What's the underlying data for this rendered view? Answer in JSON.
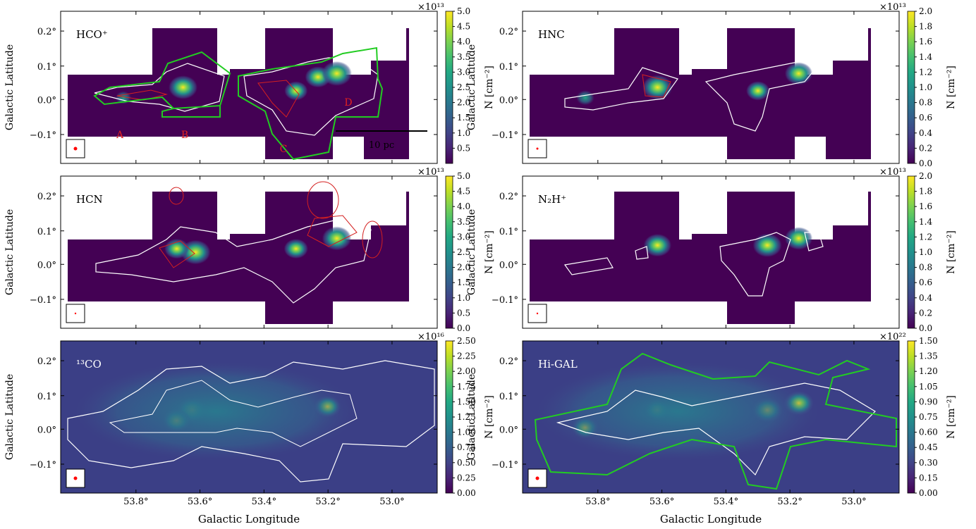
{
  "figure": {
    "ylabel": "Galactic Latitude",
    "xlabel": "Galactic Longitude",
    "cbar_label": "N [cm$^{-2}$]",
    "x_ticks": [
      "53.8°",
      "53.6°",
      "53.4°",
      "53.2°",
      "53.0°"
    ],
    "y_ticks": [
      "0.2°",
      "0.1°",
      "0.0°",
      "−0.1°"
    ]
  },
  "chart_data": [
    {
      "type": "heatmap",
      "species": "HCO⁺",
      "label": "HCO$^+$",
      "multiplier": "×10$^{13}$",
      "colorbar_ticks": [
        "0.5",
        "1.0",
        "1.5",
        "2.0",
        "2.5",
        "3.0",
        "3.5",
        "4.0",
        "4.5",
        "5.0"
      ],
      "colorbar_range": [
        0.0,
        5.0
      ],
      "x_range_deg": [
        54.0,
        52.8
      ],
      "y_range_deg": [
        -0.19,
        0.25
      ],
      "region_labels": [
        "A",
        "B",
        "C",
        "D"
      ],
      "scalebar_label": "10 pc",
      "peaks": [
        {
          "l": 53.61,
          "b": 0.03,
          "v": 4.5
        },
        {
          "l": 53.18,
          "b": 0.06,
          "v": 3.8
        },
        {
          "l": 53.12,
          "b": 0.07,
          "v": 4.8
        },
        {
          "l": 53.25,
          "b": 0.02,
          "v": 3.2
        },
        {
          "l": 53.8,
          "b": 0.0,
          "v": 1.5
        }
      ]
    },
    {
      "type": "heatmap",
      "species": "HNC",
      "label": "HNC",
      "multiplier": "×10$^{13}$",
      "colorbar_ticks": [
        "0.0",
        "0.2",
        "0.4",
        "0.6",
        "0.8",
        "1.0",
        "1.2",
        "1.4",
        "1.6",
        "1.8",
        "2.0"
      ],
      "colorbar_range": [
        0.0,
        2.0
      ],
      "x_range_deg": [
        54.0,
        52.8
      ],
      "y_range_deg": [
        -0.19,
        0.25
      ],
      "peaks": [
        {
          "l": 53.57,
          "b": 0.03,
          "v": 1.9
        },
        {
          "l": 53.12,
          "b": 0.07,
          "v": 1.7
        },
        {
          "l": 53.25,
          "b": 0.02,
          "v": 1.3
        },
        {
          "l": 53.8,
          "b": 0.0,
          "v": 0.8
        }
      ]
    },
    {
      "type": "heatmap",
      "species": "HCN",
      "label": "HCN",
      "multiplier": "×10$^{13}$",
      "colorbar_ticks": [
        "0.0",
        "0.5",
        "1.0",
        "1.5",
        "2.0",
        "2.5",
        "3.0",
        "3.5",
        "4.0",
        "4.5",
        "5.0"
      ],
      "colorbar_range": [
        0.0,
        5.0
      ],
      "x_range_deg": [
        54.0,
        52.8
      ],
      "y_range_deg": [
        -0.19,
        0.25
      ],
      "peaks": [
        {
          "l": 53.57,
          "b": 0.03,
          "v": 4.7
        },
        {
          "l": 53.12,
          "b": 0.07,
          "v": 4.6
        },
        {
          "l": 53.25,
          "b": 0.04,
          "v": 3.4
        },
        {
          "l": 53.63,
          "b": 0.04,
          "v": 3.5
        }
      ]
    },
    {
      "type": "heatmap",
      "species": "N₂H⁺",
      "label": "N$_2$H$^+$",
      "multiplier": "×10$^{13}$",
      "colorbar_ticks": [
        "0.0",
        "0.2",
        "0.4",
        "0.6",
        "0.8",
        "1.0",
        "1.2",
        "1.4",
        "1.6",
        "1.8",
        "2.0"
      ],
      "colorbar_range": [
        0.0,
        2.0
      ],
      "x_range_deg": [
        54.0,
        52.8
      ],
      "y_range_deg": [
        -0.19,
        0.25
      ],
      "peaks": [
        {
          "l": 53.57,
          "b": 0.05,
          "v": 1.7
        },
        {
          "l": 53.22,
          "b": 0.05,
          "v": 1.8
        },
        {
          "l": 53.12,
          "b": 0.07,
          "v": 1.7
        }
      ]
    },
    {
      "type": "heatmap",
      "species": "¹³CO",
      "label": "$^{13}$CO",
      "multiplier": "×10$^{16}$",
      "colorbar_ticks": [
        "0.00",
        "0.25",
        "0.50",
        "0.75",
        "1.00",
        "1.25",
        "1.50",
        "1.75",
        "2.00",
        "2.25",
        "2.50"
      ],
      "colorbar_range": [
        0.0,
        2.5
      ],
      "x_range_deg": [
        54.0,
        52.8
      ],
      "y_range_deg": [
        -0.19,
        0.25
      ],
      "peaks": [
        {
          "l": 53.58,
          "b": 0.05,
          "v": 2.4
        },
        {
          "l": 53.63,
          "b": 0.02,
          "v": 2.2
        },
        {
          "l": 53.15,
          "b": 0.06,
          "v": 2.0
        }
      ]
    },
    {
      "type": "heatmap",
      "species": "Hi-GAL",
      "label": "Hi-GAL",
      "multiplier": "×10$^{22}$",
      "colorbar_ticks": [
        "0.00",
        "0.15",
        "0.30",
        "0.45",
        "0.60",
        "0.75",
        "0.90",
        "1.05",
        "1.20",
        "1.35",
        "1.50"
      ],
      "colorbar_range": [
        0.0,
        1.5
      ],
      "x_range_deg": [
        54.0,
        52.8
      ],
      "y_range_deg": [
        -0.19,
        0.25
      ],
      "peaks": [
        {
          "l": 53.22,
          "b": 0.05,
          "v": 1.45
        },
        {
          "l": 53.12,
          "b": 0.07,
          "v": 1.4
        },
        {
          "l": 53.57,
          "b": 0.05,
          "v": 1.1
        },
        {
          "l": 53.8,
          "b": 0.0,
          "v": 1.2
        }
      ]
    }
  ],
  "colors": {
    "contour_white": "#ffffff",
    "contour_red": "#d42020",
    "contour_green": "#22cc22",
    "beam_dot": "#ff0000",
    "region_label": "#e02020",
    "viridis_low": "#440154",
    "viridis_high": "#fde725"
  }
}
